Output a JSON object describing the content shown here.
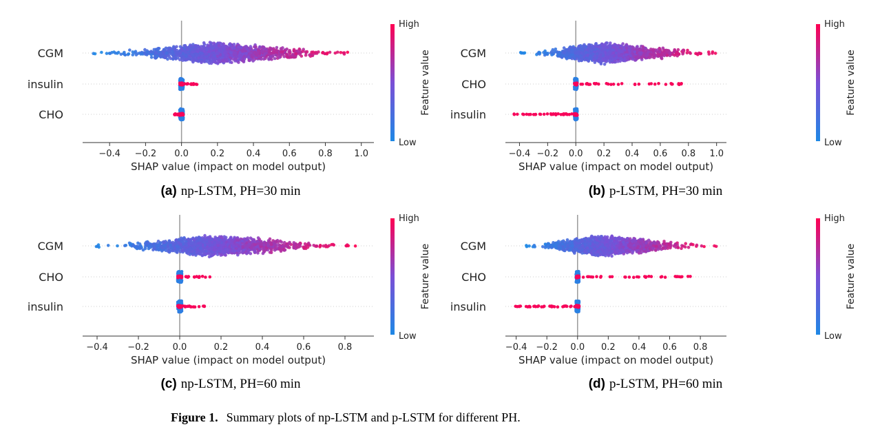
{
  "colors": {
    "low": "#1e88e5",
    "mid": "#7b4fd6",
    "high": "#ff0052",
    "axis": "#333333",
    "grid": "#cccccc",
    "zero_line": "#999999"
  },
  "figure_caption": {
    "label": "Figure 1.",
    "text": "Summary plots of np-LSTM and p-LSTM for different PH."
  },
  "chart_data": [
    {
      "type": "scatter",
      "subtype": "shap-beeswarm",
      "caption_label": "(a)",
      "caption_text": "np-LSTM, PH=30 min",
      "xlabel": "SHAP value (impact on model output)",
      "ylabel": "",
      "xlim": [
        -0.55,
        1.07
      ],
      "xticks": [
        -0.4,
        -0.2,
        0.0,
        0.2,
        0.4,
        0.6,
        0.8,
        1.0
      ],
      "xtick_labels": [
        "−0.4",
        "−0.2",
        "0.0",
        "0.2",
        "0.4",
        "0.6",
        "0.8",
        "1.0"
      ],
      "features": [
        "CGM",
        "insulin",
        "CHO"
      ],
      "colorbar": {
        "title": "Feature value",
        "high": "High",
        "low": "Low"
      },
      "feature_ranges": [
        {
          "feature": "CGM",
          "min": -0.5,
          "max": 1.01,
          "peak": 0.2
        },
        {
          "feature": "insulin",
          "min": -0.01,
          "max": 0.09,
          "peak": 0.0
        },
        {
          "feature": "CHO",
          "min": -0.04,
          "max": 0.03,
          "peak": 0.0
        }
      ]
    },
    {
      "type": "scatter",
      "subtype": "shap-beeswarm",
      "caption_label": "(b)",
      "caption_text": "p-LSTM, PH=30 min",
      "xlabel": "SHAP value (impact on model output)",
      "ylabel": "",
      "xlim": [
        -0.5,
        1.07
      ],
      "xticks": [
        -0.4,
        -0.2,
        0.0,
        0.2,
        0.4,
        0.6,
        0.8,
        1.0
      ],
      "xtick_labels": [
        "−0.4",
        "−0.2",
        "0.0",
        "0.2",
        "0.4",
        "0.6",
        "0.8",
        "1.0"
      ],
      "features": [
        "CGM",
        "CHO",
        "insulin"
      ],
      "colorbar": {
        "title": "Feature value",
        "high": "High",
        "low": "Low"
      },
      "feature_ranges": [
        {
          "feature": "CGM",
          "min": -0.4,
          "max": 1.03,
          "peak": 0.2
        },
        {
          "feature": "CHO",
          "min": -0.01,
          "max": 0.78,
          "peak": 0.0
        },
        {
          "feature": "insulin",
          "min": -0.44,
          "max": 0.02,
          "peak": 0.0
        }
      ]
    },
    {
      "type": "scatter",
      "subtype": "shap-beeswarm",
      "caption_label": "(c)",
      "caption_text": "np-LSTM, PH=60 min",
      "xlabel": "SHAP value (impact on model output)",
      "ylabel": "",
      "xlim": [
        -0.47,
        0.94
      ],
      "xticks": [
        -0.4,
        -0.2,
        0.0,
        0.2,
        0.4,
        0.6,
        0.8
      ],
      "xtick_labels": [
        "−0.4",
        "−0.2",
        "0.0",
        "0.2",
        "0.4",
        "0.6",
        "0.8"
      ],
      "features": [
        "CGM",
        "CHO",
        "insulin"
      ],
      "colorbar": {
        "title": "Feature value",
        "high": "High",
        "low": "Low"
      },
      "feature_ranges": [
        {
          "feature": "CGM",
          "min": -0.42,
          "max": 0.88,
          "peak": 0.17
        },
        {
          "feature": "CHO",
          "min": -0.01,
          "max": 0.15,
          "peak": 0.0
        },
        {
          "feature": "insulin",
          "min": -0.01,
          "max": 0.12,
          "peak": 0.0
        }
      ]
    },
    {
      "type": "scatter",
      "subtype": "shap-beeswarm",
      "caption_label": "(d)",
      "caption_text": "p-LSTM, PH=60 min",
      "xlabel": "SHAP value (impact on model output)",
      "ylabel": "",
      "xlim": [
        -0.47,
        0.97
      ],
      "xticks": [
        -0.4,
        -0.2,
        0.0,
        0.2,
        0.4,
        0.6,
        0.8
      ],
      "xtick_labels": [
        "−0.4",
        "−0.2",
        "0.0",
        "0.2",
        "0.4",
        "0.6",
        "0.8"
      ],
      "features": [
        "CGM",
        "CHO",
        "insulin"
      ],
      "colorbar": {
        "title": "Feature value",
        "high": "High",
        "low": "Low"
      },
      "feature_ranges": [
        {
          "feature": "CGM",
          "min": -0.36,
          "max": 0.92,
          "peak": 0.16
        },
        {
          "feature": "CHO",
          "min": -0.01,
          "max": 0.76,
          "peak": 0.0
        },
        {
          "feature": "insulin",
          "min": -0.41,
          "max": 0.02,
          "peak": 0.0
        }
      ]
    }
  ]
}
